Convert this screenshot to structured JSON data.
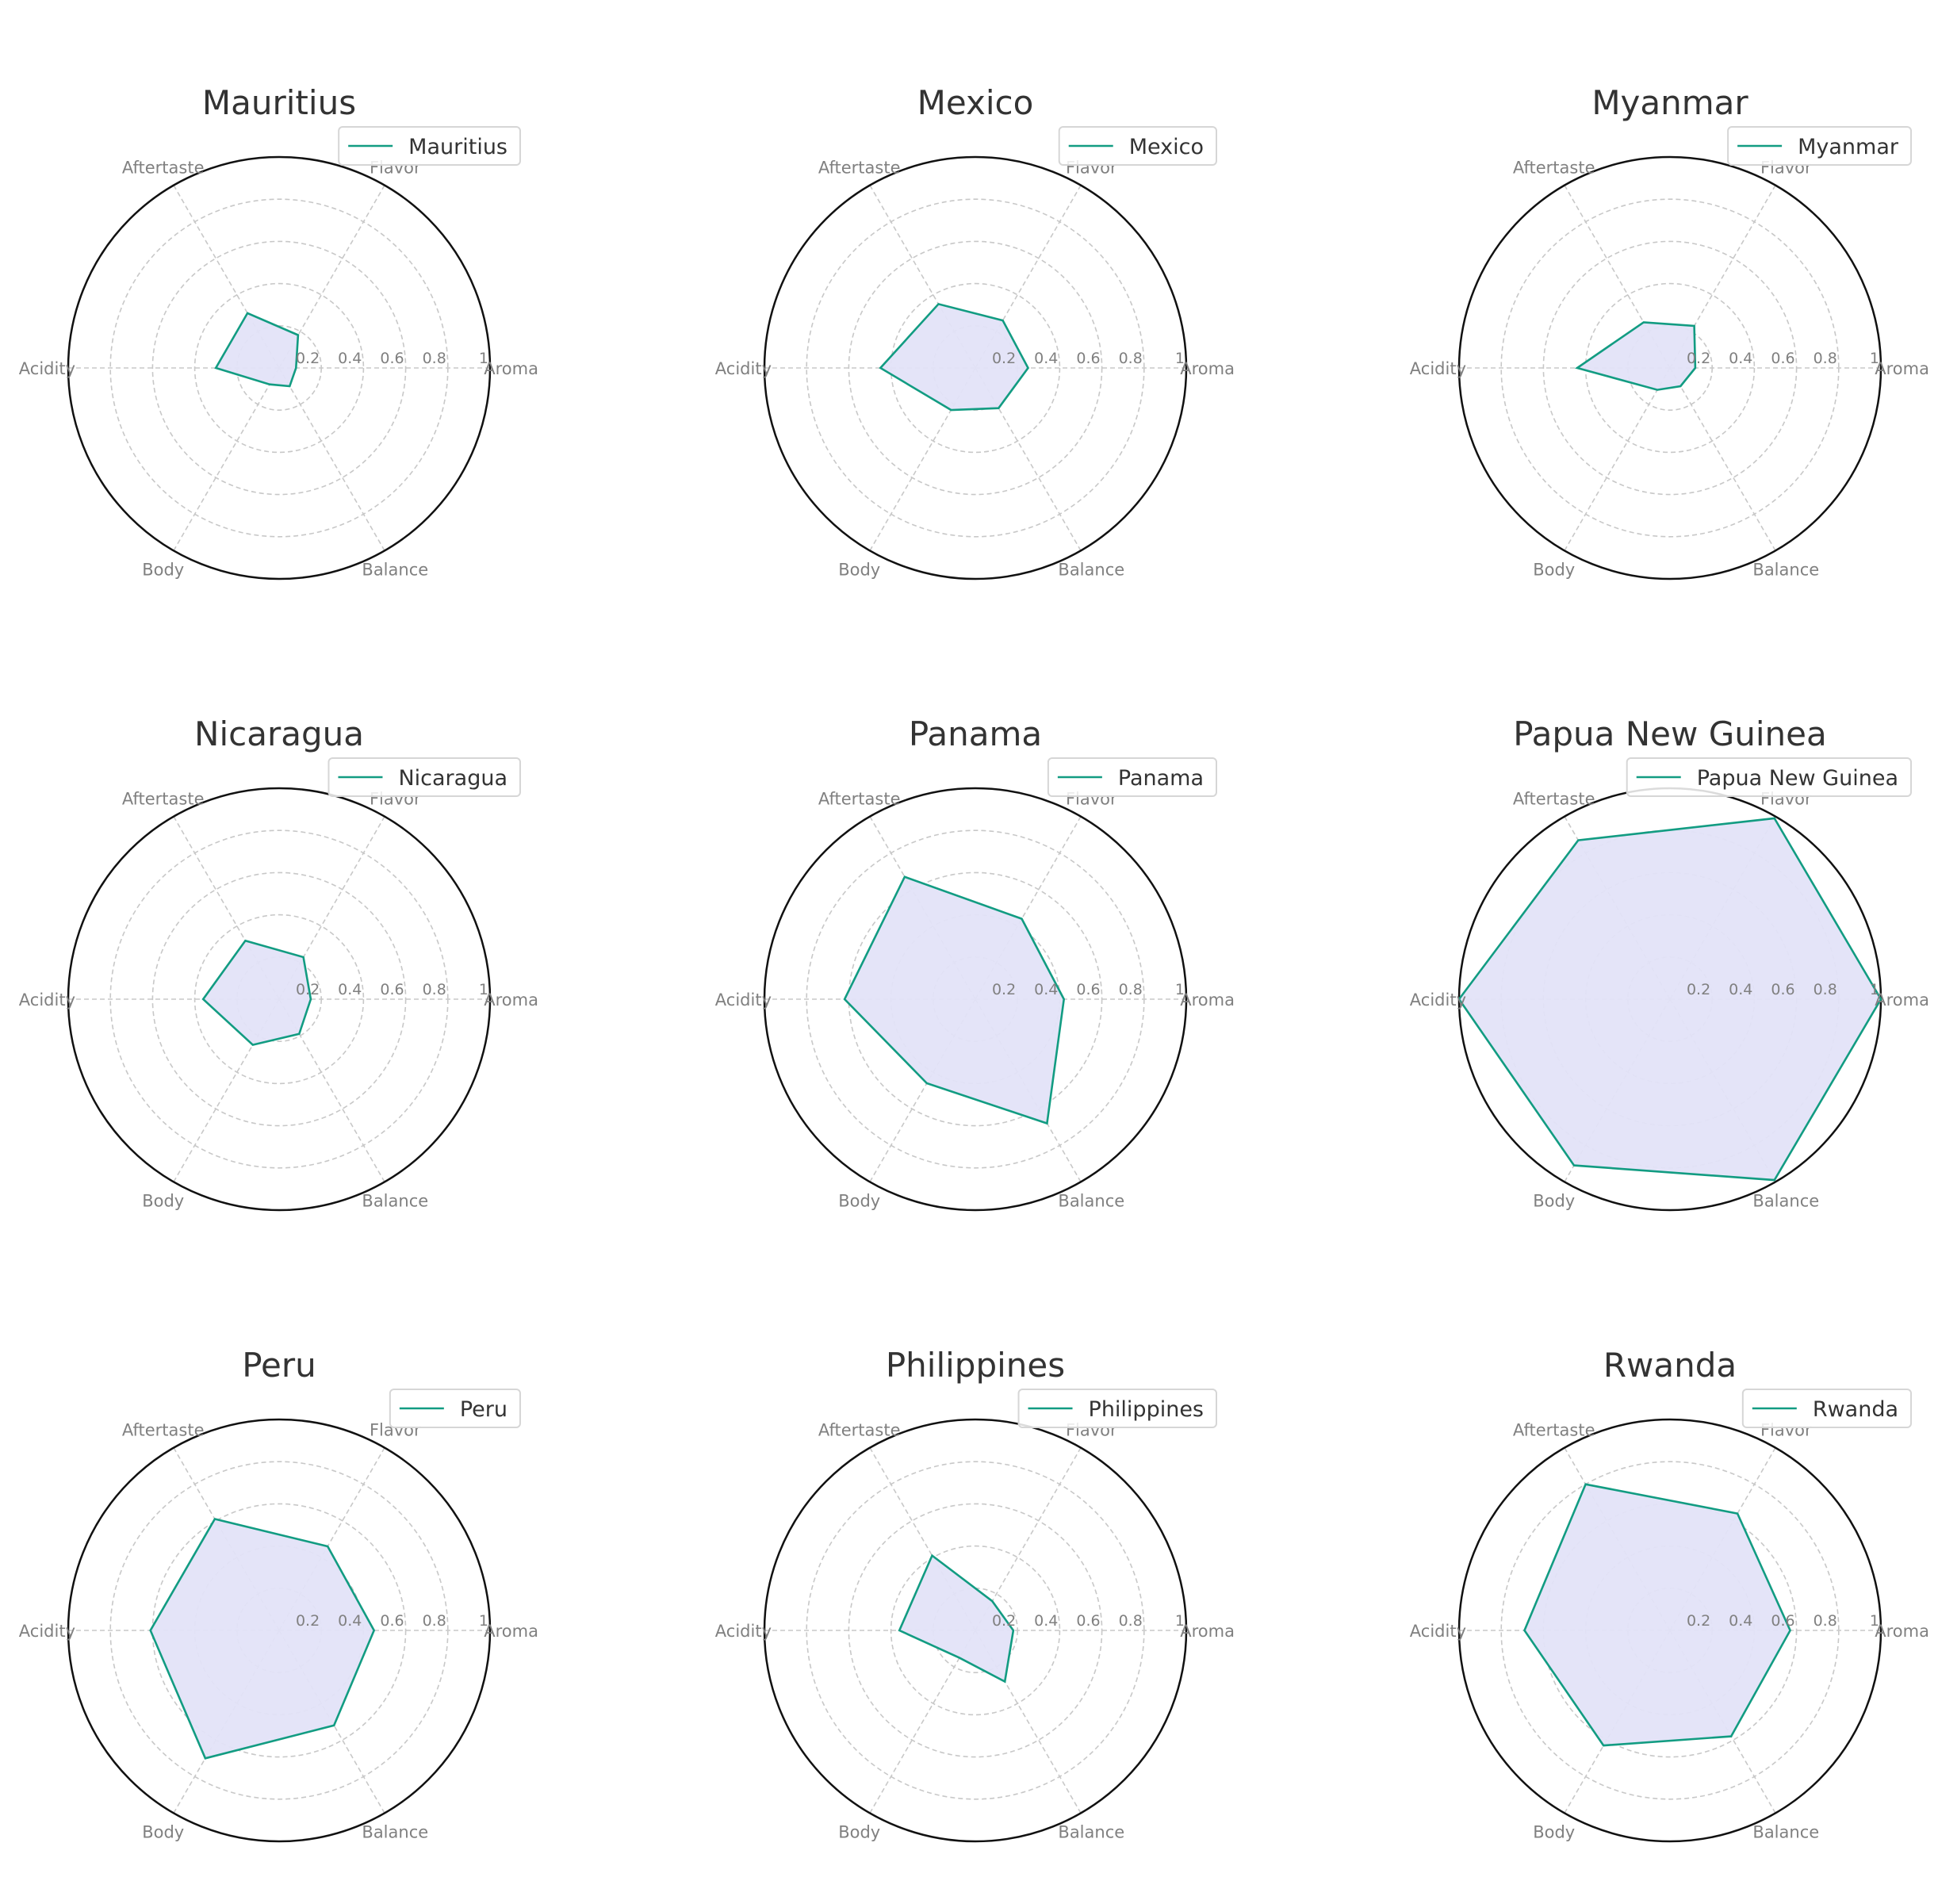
{
  "chart_data": {
    "type": "radar",
    "categories": [
      "Aroma",
      "Flavor",
      "Aftertaste",
      "Acidity",
      "Body",
      "Balance"
    ],
    "rlim": [
      0,
      1
    ],
    "rticks": [
      "0.2",
      "0.4",
      "0.6",
      "0.8",
      "1"
    ],
    "rtick_values": [
      0.2,
      0.4,
      0.6,
      0.8,
      1.0
    ],
    "grid": true,
    "legend_placement": "top-right",
    "line_color": "#129c82",
    "fill_color": "#e3e3f8",
    "panels": [
      {
        "title": "Mauritius",
        "legend": "Mauritius",
        "values": [
          0.08,
          0.18,
          0.3,
          0.3,
          0.09,
          0.1
        ]
      },
      {
        "title": "Mexico",
        "legend": "Mexico",
        "values": [
          0.25,
          0.26,
          0.35,
          0.45,
          0.23,
          0.22
        ]
      },
      {
        "title": "Myanmar",
        "legend": "Myanmar",
        "values": [
          0.12,
          0.23,
          0.25,
          0.44,
          0.12,
          0.1
        ]
      },
      {
        "title": "Nicaragua",
        "legend": "Nicaragua",
        "values": [
          0.15,
          0.23,
          0.32,
          0.36,
          0.25,
          0.19
        ]
      },
      {
        "title": "Panama",
        "legend": "Panama",
        "values": [
          0.42,
          0.44,
          0.67,
          0.62,
          0.46,
          0.68
        ]
      },
      {
        "title": "Papua New Guinea",
        "legend": "Papua New Guinea",
        "values": [
          1.0,
          0.99,
          0.87,
          1.0,
          0.91,
          0.99
        ]
      },
      {
        "title": "Peru",
        "legend": "Peru",
        "values": [
          0.45,
          0.46,
          0.61,
          0.61,
          0.7,
          0.52
        ]
      },
      {
        "title": "Philippines",
        "legend": "Philippines",
        "values": [
          0.18,
          0.16,
          0.41,
          0.36,
          0.15,
          0.28
        ]
      },
      {
        "title": "Rwanda",
        "legend": "Rwanda",
        "values": [
          0.57,
          0.64,
          0.8,
          0.69,
          0.63,
          0.58
        ]
      }
    ]
  }
}
